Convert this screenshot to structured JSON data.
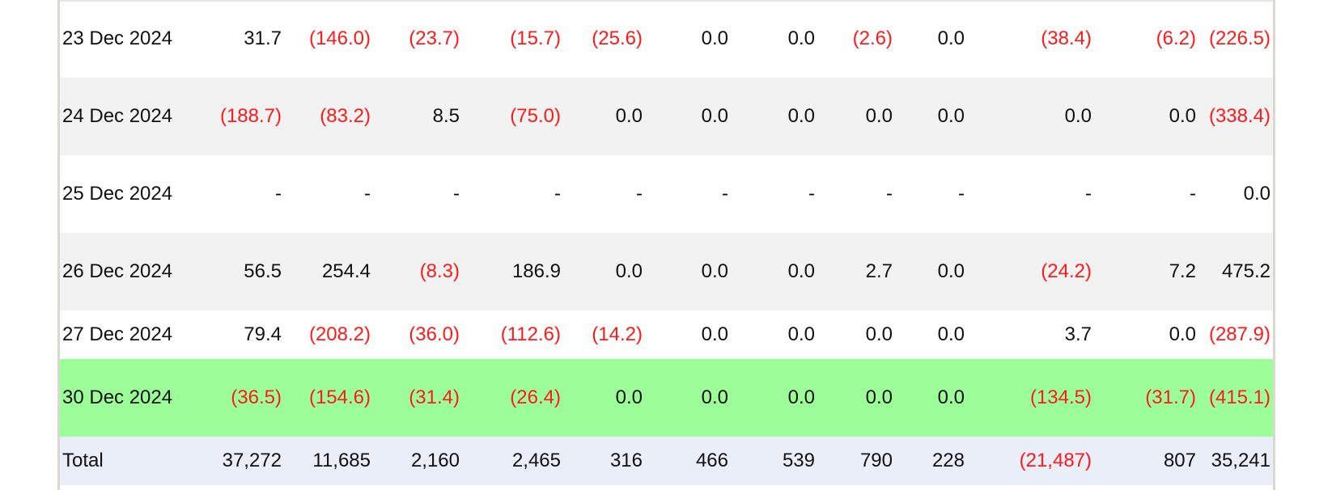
{
  "colors": {
    "negative": "#ff1a1a",
    "highlight_row": "#9cfe98",
    "alt_row": "#f2f2f2",
    "total_row": "#e9eef8"
  },
  "rows": [
    {
      "date": "23 Dec 2024",
      "style": "even",
      "values": [
        "31.7",
        "(146.0)",
        "(23.7)",
        "(15.7)",
        "(25.6)",
        "0.0",
        "0.0",
        "(2.6)",
        "0.0",
        "(38.4)",
        "(6.2)",
        "(226.5)"
      ]
    },
    {
      "date": "24 Dec 2024",
      "style": "odd",
      "values": [
        "(188.7)",
        "(83.2)",
        "8.5",
        "(75.0)",
        "0.0",
        "0.0",
        "0.0",
        "0.0",
        "0.0",
        "0.0",
        "0.0",
        "(338.4)"
      ]
    },
    {
      "date": "25 Dec 2024",
      "style": "even",
      "values": [
        "-",
        "-",
        "-",
        "-",
        "-",
        "-",
        "-",
        "-",
        "-",
        "-",
        "-",
        "0.0"
      ]
    },
    {
      "date": "26 Dec 2024",
      "style": "odd",
      "values": [
        "56.5",
        "254.4",
        "(8.3)",
        "186.9",
        "0.0",
        "0.0",
        "0.0",
        "2.7",
        "0.0",
        "(24.2)",
        "7.2",
        "475.2"
      ]
    },
    {
      "date": "27 Dec 2024",
      "style": "even",
      "values": [
        "79.4",
        "(208.2)",
        "(36.0)",
        "(112.6)",
        "(14.2)",
        "0.0",
        "0.0",
        "0.0",
        "0.0",
        "3.7",
        "0.0",
        "(287.9)"
      ]
    },
    {
      "date": "30 Dec 2024",
      "style": "highlight",
      "values": [
        "(36.5)",
        "(154.6)",
        "(31.4)",
        "(26.4)",
        "0.0",
        "0.0",
        "0.0",
        "0.0",
        "0.0",
        "(134.5)",
        "(31.7)",
        "(415.1)"
      ]
    }
  ],
  "total": {
    "label": "Total",
    "values": [
      "37,272",
      "11,685",
      "2,160",
      "2,465",
      "316",
      "466",
      "539",
      "790",
      "228",
      "(21,487)",
      "807",
      "35,241"
    ]
  }
}
